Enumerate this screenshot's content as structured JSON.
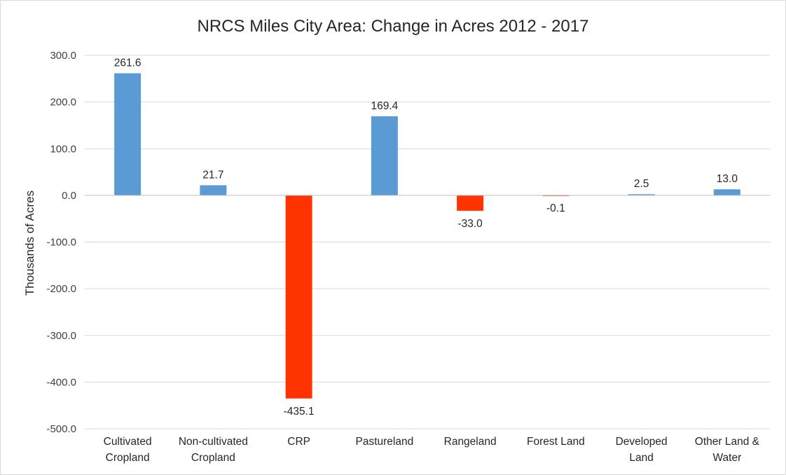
{
  "chart_data": {
    "type": "bar",
    "title": "NRCS Miles City Area: Change in Acres 2012 - 2017",
    "ylabel": "Thousands of Acres",
    "xlabel": "",
    "ylim": [
      -500,
      300
    ],
    "yticks": [
      "300.0",
      "200.0",
      "100.0",
      "0.0",
      "-100.0",
      "-200.0",
      "-300.0",
      "-400.0",
      "-500.0"
    ],
    "grid": true,
    "legend": "none",
    "categories": [
      [
        "Cultivated",
        "Cropland"
      ],
      [
        "Non-cultivated",
        "Cropland"
      ],
      [
        "CRP"
      ],
      [
        "Pastureland"
      ],
      [
        "Rangeland"
      ],
      [
        "Forest Land"
      ],
      [
        "Developed",
        "Land"
      ],
      [
        "Other Land &",
        "Water"
      ]
    ],
    "values": [
      261.6,
      21.7,
      -435.1,
      169.4,
      -33.0,
      -0.1,
      2.5,
      13.0
    ],
    "data_labels": [
      "261.6",
      "21.7",
      "-435.1",
      "169.4",
      "-33.0",
      "-0.1",
      "2.5",
      "13.0"
    ],
    "colors": {
      "positive": "#5b9bd5",
      "negative": "#ff3300",
      "grid": "#d9d9d9"
    }
  }
}
